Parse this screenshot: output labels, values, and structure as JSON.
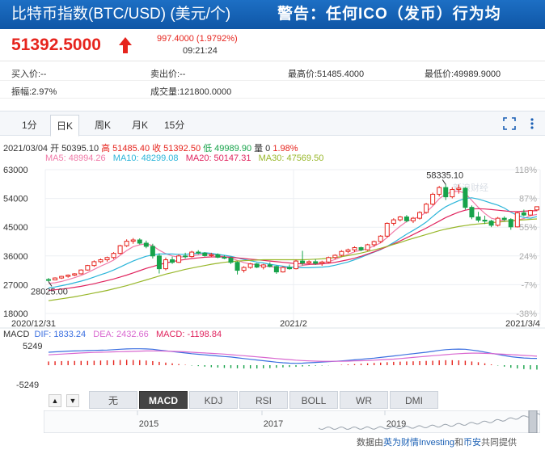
{
  "header": {
    "title": "比特币指数(BTC/USD) (美元/个)",
    "warning": "警告：任何ICO（发币）行为均"
  },
  "quote": {
    "price": "51392.5000",
    "change": "997.4000 (1.9792%)",
    "time": "09:21:24",
    "direction_icon": "up-arrow-icon"
  },
  "stats": {
    "buy": "买入价:--",
    "sell": "卖出价:--",
    "high": "最高价:51485.4000",
    "low": "最低价:49989.9000",
    "amplitude": "振幅:2.97%",
    "volume": "成交量:121800.0000"
  },
  "tabs": [
    {
      "label": "1分"
    },
    {
      "label": "日K"
    },
    {
      "label": "周K"
    },
    {
      "label": "月K"
    },
    {
      "label": "15分"
    }
  ],
  "toolbar_icons": [
    "fullscreen-icon",
    "settings-icon"
  ],
  "info_line": {
    "date": "2021/03/04",
    "open": "开 50395.10",
    "high": "高 51485.40",
    "close": "收 51392.50",
    "low": "低 49989.90",
    "volume": "量 0",
    "pct": "1.98%"
  },
  "ma_legend": {
    "ma5": "MA5: 48994.26",
    "ma10": "MA10: 48299.08",
    "ma20": "MA20: 50147.31",
    "ma30": "MA30: 47569.50"
  },
  "macd_legend": {
    "label": "MACD",
    "dif": "DIF: 1833.24",
    "dea": "DEA: 2432.66",
    "macd": "MACD: -1198.84"
  },
  "colors": {
    "up": "#e6241d",
    "down": "#17a34a",
    "ma5": "#f07aa8",
    "ma10": "#2bb5d9",
    "ma20": "#e0245e",
    "ma30": "#98b72a",
    "dif": "#3b6fe0",
    "dea": "#d968d0"
  },
  "indicator_tabs": [
    "无",
    "MACD",
    "KDJ",
    "RSI",
    "BOLL",
    "WR",
    "DMI"
  ],
  "overview_years": [
    "2015",
    "2017",
    "2019"
  ],
  "credit": {
    "prefix": "数据由",
    "p1": "英为财情",
    "p2": "Investing",
    "mid": "和",
    "p3": "币安",
    "suffix": "共同提供"
  },
  "chart_data": {
    "type": "candlestick",
    "y_axis_left": [
      "63000",
      "54000",
      "45000",
      "36000",
      "27000",
      "18000"
    ],
    "y_axis_right": [
      "118%",
      "87%",
      "55%",
      "24%",
      "-7%",
      "-38%"
    ],
    "ylim": [
      18000,
      63000
    ],
    "x_labels": [
      "2020/12/31",
      "2021/2",
      "2021/3/4"
    ],
    "annotations": {
      "max": "58335.10",
      "min": "28025.00"
    },
    "macd_axis": [
      "5249",
      "-5249"
    ],
    "watermark": "新浪财经",
    "candles": [
      [
        28600,
        29100,
        28000,
        28500
      ],
      [
        28500,
        29300,
        28400,
        29100
      ],
      [
        29100,
        29800,
        28800,
        29600
      ],
      [
        29600,
        30200,
        29200,
        30000
      ],
      [
        30000,
        30600,
        29700,
        30400
      ],
      [
        30400,
        31800,
        30200,
        31600
      ],
      [
        31600,
        33200,
        31400,
        33000
      ],
      [
        33000,
        34600,
        32600,
        34200
      ],
      [
        34200,
        35200,
        33800,
        34800
      ],
      [
        34800,
        35800,
        34200,
        35500
      ],
      [
        35500,
        37200,
        35000,
        36800
      ],
      [
        36800,
        39500,
        36500,
        39200
      ],
      [
        39200,
        41200,
        38800,
        40600
      ],
      [
        40600,
        41600,
        39800,
        41000
      ],
      [
        41000,
        41500,
        39600,
        40000
      ],
      [
        40000,
        40800,
        38400,
        39000
      ],
      [
        39000,
        39800,
        35200,
        36000
      ],
      [
        36000,
        36800,
        30500,
        32000
      ],
      [
        32000,
        35500,
        31500,
        34800
      ],
      [
        34800,
        35800,
        33500,
        34000
      ],
      [
        34000,
        36500,
        33800,
        36000
      ],
      [
        36000,
        37000,
        35200,
        35800
      ],
      [
        35800,
        37600,
        35500,
        37200
      ],
      [
        37200,
        37800,
        36500,
        36900
      ],
      [
        36900,
        37200,
        35800,
        36100
      ],
      [
        36100,
        37000,
        35600,
        36400
      ],
      [
        36400,
        36800,
        35300,
        35600
      ],
      [
        35600,
        36200,
        35000,
        35300
      ],
      [
        35300,
        35800,
        33500,
        34000
      ],
      [
        34000,
        34300,
        30200,
        31500
      ],
      [
        31500,
        32800,
        30800,
        32400
      ],
      [
        32400,
        33800,
        32000,
        33500
      ],
      [
        33500,
        33800,
        32200,
        32500
      ],
      [
        32500,
        33500,
        31800,
        33200
      ],
      [
        33200,
        34000,
        32400,
        32700
      ],
      [
        32700,
        33000,
        30400,
        31000
      ],
      [
        31000,
        32800,
        30800,
        32400
      ],
      [
        32400,
        33300,
        31700,
        32000
      ],
      [
        32000,
        34800,
        31800,
        34400
      ],
      [
        34400,
        37600,
        33000,
        33800
      ],
      [
        33800,
        34600,
        33400,
        34200
      ],
      [
        34200,
        35000,
        33200,
        33700
      ],
      [
        33700,
        34500,
        32900,
        34100
      ],
      [
        34100,
        35800,
        33800,
        35500
      ],
      [
        35500,
        36500,
        35000,
        36200
      ],
      [
        36200,
        37800,
        35800,
        37400
      ],
      [
        37400,
        38300,
        36900,
        37900
      ],
      [
        37900,
        39000,
        37200,
        38600
      ],
      [
        38600,
        38900,
        37500,
        37900
      ],
      [
        37900,
        39800,
        37600,
        39500
      ],
      [
        39500,
        40800,
        38800,
        40500
      ],
      [
        40500,
        42500,
        40000,
        42200
      ],
      [
        42200,
        46500,
        41800,
        46200
      ],
      [
        46200,
        47800,
        45500,
        47300
      ],
      [
        47300,
        48500,
        46800,
        48200
      ],
      [
        48200,
        48800,
        46500,
        47000
      ],
      [
        47000,
        48200,
        46300,
        47800
      ],
      [
        47800,
        50000,
        47400,
        49600
      ],
      [
        49600,
        52600,
        49200,
        52200
      ],
      [
        52200,
        55800,
        51800,
        55300
      ],
      [
        55300,
        57900,
        54600,
        57400
      ],
      [
        57400,
        58335,
        53500,
        54500
      ],
      [
        54500,
        57500,
        54000,
        56800
      ],
      [
        56800,
        58335,
        55500,
        57200
      ],
      [
        57200,
        57500,
        50500,
        51200
      ],
      [
        51200,
        51800,
        47500,
        48200
      ],
      [
        48200,
        49800,
        46500,
        47200
      ],
      [
        47200,
        48600,
        46000,
        46900
      ],
      [
        46900,
        47300,
        45000,
        45600
      ],
      [
        45600,
        48200,
        45200,
        47800
      ],
      [
        47800,
        48400,
        46900,
        47400
      ],
      [
        47400,
        47800,
        44200,
        45100
      ],
      [
        45100,
        49800,
        44900,
        49500
      ],
      [
        49500,
        50500,
        48400,
        48800
      ],
      [
        48800,
        50400,
        48600,
        50200
      ],
      [
        50400,
        51500,
        50000,
        51400
      ]
    ],
    "series": [
      {
        "name": "MA5",
        "values": [
          27400,
          27600,
          28000,
          28600,
          29200,
          29900,
          30800,
          31800,
          32800,
          33700,
          34700,
          36200,
          37700,
          38900,
          39500,
          39800,
          39200,
          37800,
          36700,
          36000,
          35600,
          35800,
          36100,
          36300,
          36700,
          36500,
          36100,
          35800,
          35300,
          34600,
          33900,
          33500,
          33200,
          32900,
          32700,
          32400,
          32200,
          32300,
          32600,
          33000,
          33300,
          33700,
          33900,
          34200,
          34900,
          35700,
          36500,
          37300,
          37800,
          38300,
          39100,
          40100,
          41800,
          43600,
          45300,
          46800,
          47600,
          48300,
          49700,
          51600,
          53900,
          55400,
          56000,
          56300,
          55600,
          53400,
          51200,
          49300,
          47800,
          47300,
          47000,
          46800,
          47200,
          47700,
          48600,
          49000
        ]
      },
      {
        "name": "MA10",
        "values": [
          26000,
          26300,
          26700,
          27100,
          27600,
          28100,
          28700,
          29400,
          30100,
          30800,
          31600,
          32500,
          33500,
          34400,
          35200,
          35900,
          36300,
          36600,
          36600,
          36600,
          36500,
          36500,
          36700,
          36800,
          37000,
          36800,
          36500,
          36200,
          35900,
          35400,
          34900,
          34500,
          34100,
          33800,
          33400,
          33100,
          32800,
          32500,
          32400,
          32300,
          32300,
          32400,
          32500,
          32700,
          33100,
          33600,
          34100,
          34800,
          35600,
          36400,
          37200,
          38000,
          39000,
          40200,
          41500,
          42800,
          44000,
          45200,
          46600,
          48300,
          50000,
          51400,
          52400,
          53300,
          54000,
          54200,
          53800,
          53200,
          52500,
          51900,
          51000,
          49700,
          48700,
          48000,
          47800,
          48300
        ]
      },
      {
        "name": "MA20",
        "values": [
          25200,
          25400,
          25600,
          25900,
          26200,
          26500,
          26900,
          27300,
          27800,
          28300,
          28800,
          29400,
          30000,
          30700,
          31400,
          32100,
          32700,
          33300,
          33800,
          34200,
          34600,
          34900,
          35200,
          35400,
          35600,
          35700,
          35700,
          35700,
          35600,
          35400,
          35200,
          35000,
          34800,
          34600,
          34400,
          34200,
          34000,
          33800,
          33600,
          33500,
          33400,
          33400,
          33500,
          33700,
          34000,
          34400,
          34800,
          35300,
          35900,
          36600,
          37300,
          38100,
          38900,
          39800,
          40700,
          41700,
          42700,
          43700,
          44700,
          45800,
          46900,
          48000,
          48900,
          49700,
          50300,
          50700,
          50800,
          50700,
          50500,
          50300,
          50100,
          49900,
          49900,
          50000,
          50100,
          50150
        ]
      },
      {
        "name": "MA30",
        "values": [
          22000,
          22300,
          22600,
          22900,
          23200,
          23600,
          24000,
          24400,
          24800,
          25200,
          25700,
          26200,
          26700,
          27300,
          27900,
          28500,
          29100,
          29700,
          30300,
          30800,
          31300,
          31800,
          32200,
          32600,
          33000,
          33400,
          33700,
          34000,
          34200,
          34400,
          34500,
          34600,
          34700,
          34800,
          34800,
          34800,
          34800,
          34800,
          34800,
          34800,
          34900,
          35000,
          35100,
          35300,
          35500,
          35800,
          36100,
          36500,
          36900,
          37400,
          37900,
          38400,
          39000,
          39600,
          40200,
          40900,
          41500,
          42100,
          42700,
          43300,
          43900,
          44400,
          44800,
          45200,
          45500,
          45800,
          46000,
          46200,
          46400,
          46600,
          46800,
          47000,
          47200,
          47300,
          47450,
          47570
        ]
      },
      {
        "name": "DIF",
        "values": [
          3500,
          3600,
          3700,
          3800,
          3850,
          3900,
          3950,
          4000,
          4050,
          4100,
          4200,
          4300,
          4400,
          4450,
          4450,
          4400,
          4300,
          4100,
          3900,
          3700,
          3500,
          3300,
          3100,
          2950,
          2800,
          2650,
          2500,
          2350,
          2200,
          2000,
          1800,
          1600,
          1400,
          1200,
          1000,
          800,
          650,
          550,
          500,
          550,
          650,
          750,
          850,
          950,
          1050,
          1150,
          1300,
          1450,
          1600,
          1750,
          1900,
          2100,
          2300,
          2500,
          2700,
          2900,
          3100,
          3300,
          3500,
          3750,
          4000,
          4200,
          4300,
          4350,
          4300,
          4100,
          3850,
          3550,
          3200,
          2900,
          2600,
          2300,
          2100,
          1950,
          1850,
          1830
        ]
      },
      {
        "name": "DEA",
        "values": [
          2800,
          2900,
          3000,
          3100,
          3200,
          3300,
          3400,
          3450,
          3500,
          3550,
          3600,
          3650,
          3700,
          3750,
          3800,
          3850,
          3850,
          3850,
          3800,
          3750,
          3700,
          3600,
          3500,
          3400,
          3300,
          3200,
          3100,
          3000,
          2850,
          2700,
          2550,
          2400,
          2250,
          2100,
          1950,
          1800,
          1650,
          1500,
          1350,
          1250,
          1150,
          1100,
          1050,
          1050,
          1050,
          1050,
          1100,
          1150,
          1200,
          1250,
          1350,
          1450,
          1550,
          1650,
          1800,
          1950,
          2100,
          2250,
          2400,
          2550,
          2700,
          2850,
          3000,
          3100,
          3200,
          3250,
          3250,
          3200,
          3150,
          3050,
          2950,
          2850,
          2750,
          2650,
          2550,
          2430
        ]
      },
      {
        "name": "MACD",
        "values": [
          1000,
          1050,
          1100,
          1150,
          1150,
          1150,
          1150,
          1200,
          1250,
          1300,
          1350,
          1400,
          1450,
          1400,
          1350,
          1250,
          1100,
          900,
          700,
          500,
          300,
          100,
          -100,
          -250,
          -400,
          -550,
          -650,
          -750,
          -800,
          -850,
          -900,
          -900,
          -900,
          -850,
          -800,
          -700,
          -600,
          -500,
          -450,
          -350,
          -250,
          -150,
          -100,
          -50,
          0,
          100,
          200,
          300,
          400,
          500,
          600,
          700,
          800,
          900,
          950,
          1000,
          1050,
          1100,
          1150,
          1200,
          1300,
          1350,
          1350,
          1300,
          1200,
          1000,
          800,
          500,
          200,
          -100,
          -400,
          -700,
          -900,
          -1050,
          -1150,
          -1199
        ]
      }
    ]
  }
}
